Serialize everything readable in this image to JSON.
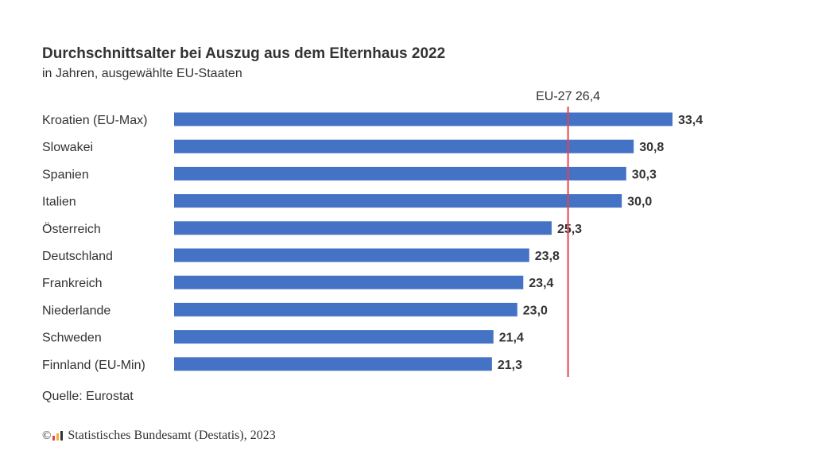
{
  "header": {
    "title": "Durchschnittsalter bei Auszug aus dem Elternhaus 2022",
    "subtitle": "in Jahren, ausgewählte EU-Staaten"
  },
  "footer": {
    "source": "Quelle: Eurostat",
    "copyright_symbol": "©",
    "copyright": "Statistisches Bundesamt (Destatis), 2023"
  },
  "colors": {
    "bar": "#4472C4",
    "reference_line": "#E8434E",
    "text": "#333333",
    "logo": [
      "#E8434E",
      "#F2B134",
      "#333333"
    ]
  },
  "chart_data": {
    "type": "bar",
    "orientation": "horizontal",
    "title": "Durchschnittsalter bei Auszug aus dem Elternhaus 2022",
    "subtitle": "in Jahren, ausgewählte EU-Staaten",
    "categories": [
      "Kroatien (EU-Max)",
      "Slowakei",
      "Spanien",
      "Italien",
      "Österreich",
      "Deutschland",
      "Frankreich",
      "Niederlande",
      "Schweden",
      "Finnland (EU-Min)"
    ],
    "values": [
      33.4,
      30.8,
      30.3,
      30.0,
      25.3,
      23.8,
      23.4,
      23.0,
      21.4,
      21.3
    ],
    "value_labels": [
      "33,4",
      "30,8",
      "30,3",
      "30,0",
      "25,3",
      "23,8",
      "23,4",
      "23,0",
      "21,4",
      "21,3"
    ],
    "reference_line": {
      "label": "EU-27 26,4",
      "value": 26.4
    },
    "xlim": [
      0,
      33.4
    ],
    "grid": false,
    "legend": "none"
  }
}
